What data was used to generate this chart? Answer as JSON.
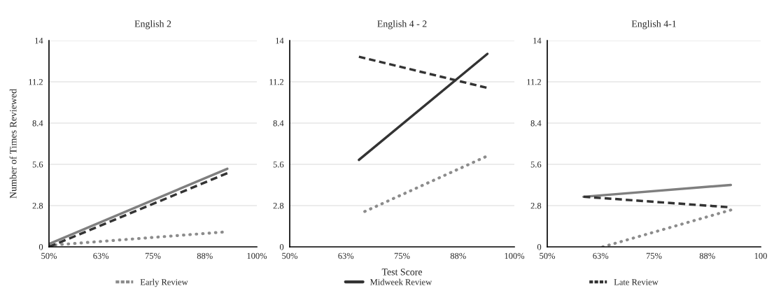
{
  "chart_data": [
    {
      "type": "line",
      "title": "English 2",
      "ylabel": "Number of Times Reviewed",
      "xlim": [
        50,
        100
      ],
      "xticks": [
        {
          "value": 50,
          "label": "50%"
        },
        {
          "value": 62.5,
          "label": "63%"
        },
        {
          "value": 75,
          "label": "75%"
        },
        {
          "value": 87.5,
          "label": "88%"
        },
        {
          "value": 100,
          "label": "100%"
        }
      ],
      "ylim": [
        0,
        14
      ],
      "yticks": [
        0,
        2.8,
        5.6,
        8.4,
        11.2,
        14
      ],
      "grid": "y",
      "legend": false,
      "series": [
        {
          "color": "#8c8c8c",
          "line_style": "dotted",
          "x": [
            50,
            91.7
          ],
          "values": [
            0.1,
            1.0
          ]
        },
        {
          "color": "#7f7f7f",
          "line_style": "solid",
          "x": [
            50,
            92.9
          ],
          "values": [
            0.2,
            5.3
          ]
        },
        {
          "color": "#333333",
          "line_style": "dashed",
          "x": [
            50,
            92.9
          ],
          "values": [
            0,
            5.0
          ]
        }
      ]
    },
    {
      "type": "line",
      "title": "English 4 - 2",
      "xlabel": "Test Score",
      "xlim": [
        50,
        100
      ],
      "xticks": [
        {
          "value": 50,
          "label": "50%"
        },
        {
          "value": 62.5,
          "label": "63%"
        },
        {
          "value": 75,
          "label": "75%"
        },
        {
          "value": 87.5,
          "label": "88%"
        },
        {
          "value": 100,
          "label": "100%"
        }
      ],
      "ylim": [
        0,
        14
      ],
      "yticks": [
        0,
        2.8,
        5.6,
        8.4,
        11.2,
        14
      ],
      "grid": "y",
      "legend": "bottom",
      "series": [
        {
          "name": "Early Review",
          "color": "#8c8c8c",
          "line_style": "dotted",
          "x": [
            66.7,
            93.5
          ],
          "values": [
            2.4,
            6.1
          ]
        },
        {
          "name": "Midweek Review",
          "color": "#333333",
          "line_style": "solid",
          "x": [
            65.4,
            94.0
          ],
          "values": [
            5.9,
            13.1
          ]
        },
        {
          "name": "Late Review",
          "color": "#333333",
          "line_style": "dashed",
          "x": [
            65.4,
            93.8
          ],
          "values": [
            12.9,
            10.8
          ]
        }
      ]
    },
    {
      "type": "line",
      "title": "English 4-1",
      "xlim": [
        50,
        100
      ],
      "xticks": [
        {
          "value": 50,
          "label": "50%"
        },
        {
          "value": 62.5,
          "label": "63%"
        },
        {
          "value": 75,
          "label": "75%"
        },
        {
          "value": 87.5,
          "label": "88%"
        },
        {
          "value": 100,
          "label": "100"
        }
      ],
      "ylim": [
        0,
        14
      ],
      "yticks": [
        0,
        2.8,
        5.6,
        8.4,
        11.2,
        14
      ],
      "grid": "y",
      "legend": false,
      "series": [
        {
          "color": "#8c8c8c",
          "line_style": "dotted",
          "x": [
            63.0,
            93.0
          ],
          "values": [
            0,
            2.5
          ]
        },
        {
          "color": "#7f7f7f",
          "line_style": "solid",
          "x": [
            58.5,
            93.0
          ],
          "values": [
            3.4,
            4.2
          ]
        },
        {
          "color": "#333333",
          "line_style": "dashed",
          "x": [
            58.5,
            92.2
          ],
          "values": [
            3.4,
            2.7
          ]
        }
      ]
    }
  ]
}
